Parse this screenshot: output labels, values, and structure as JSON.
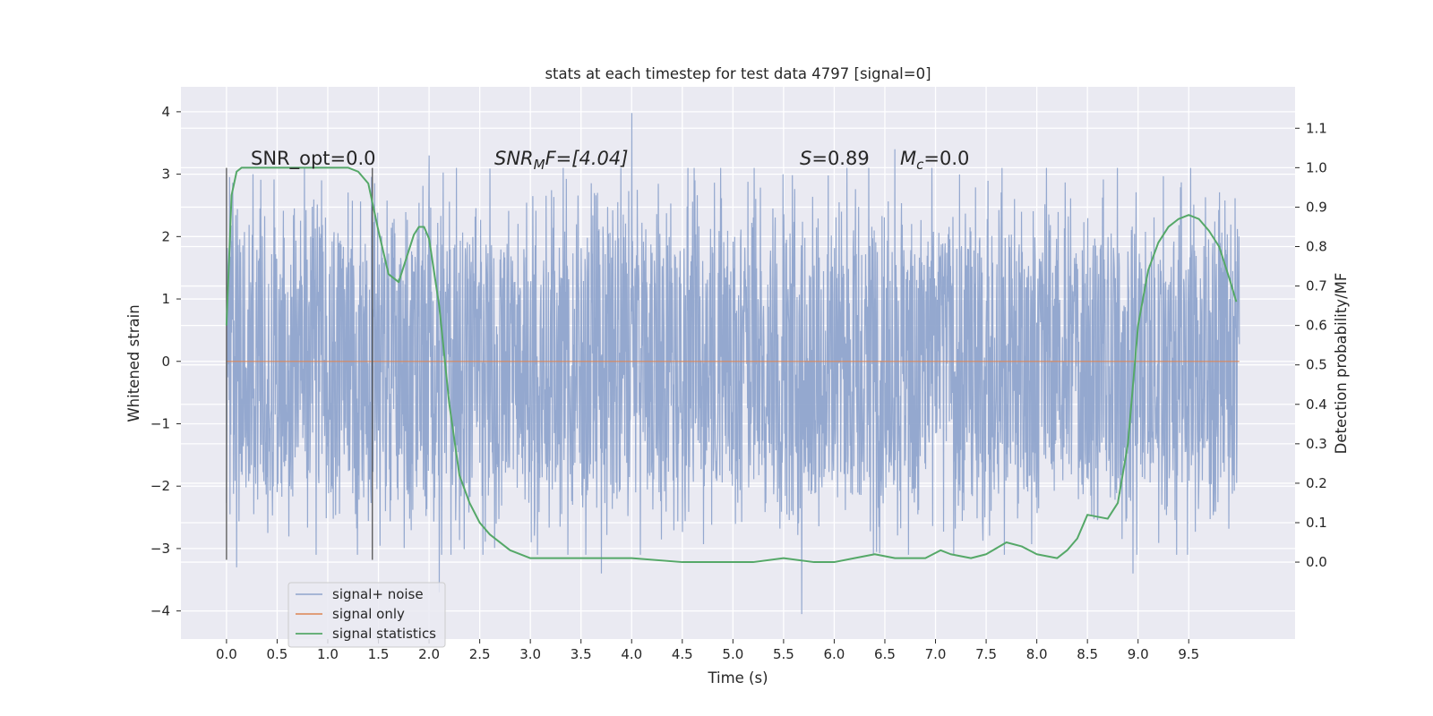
{
  "chart_data": {
    "type": "line",
    "title": "stats at each timestep for test data 4797 [signal=0]",
    "xlabel": "Time (s)",
    "ylabel_left": "Whitened strain",
    "ylabel_right": "Detection probability/MF",
    "xlim": [
      -0.45,
      10.55
    ],
    "ylim_left": [
      -4.45,
      4.4
    ],
    "ylim_right": [
      -0.195,
      1.205
    ],
    "x_ticks": [
      "0.0",
      "0.5",
      "1.0",
      "1.5",
      "2.0",
      "2.5",
      "3.0",
      "3.5",
      "4.0",
      "4.5",
      "5.0",
      "5.5",
      "6.0",
      "6.5",
      "7.0",
      "7.5",
      "8.0",
      "8.5",
      "9.0",
      "9.5"
    ],
    "y_ticks_left": [
      "−4",
      "−3",
      "−2",
      "−1",
      "0",
      "1",
      "2",
      "3",
      "4"
    ],
    "y_ticks_right": [
      "0.0",
      "0.1",
      "0.2",
      "0.3",
      "0.4",
      "0.5",
      "0.6",
      "0.7",
      "0.8",
      "0.9",
      "1.0",
      "1.1"
    ],
    "grid": true,
    "legend_position": "lower-left",
    "annotations": {
      "snr_opt": "SNR_opt=0.0",
      "snr_mf_base": "SNR",
      "snr_mf_sub": "M",
      "snr_mf_rest": "F=[4.04]",
      "s_base": "S",
      "s_rest": "=0.89",
      "mc_base": "M",
      "mc_sub": "c",
      "mc_rest": "=0.0"
    },
    "vertical_markers": [
      0.0,
      1.44
    ],
    "series": [
      {
        "name": "signal+ noise",
        "color": "#8fa4cc",
        "kind": "noise",
        "x_range": [
          0.0,
          10.0
        ],
        "y_abs_typical": 1.8,
        "y_max": 3.98,
        "y_min": -4.05,
        "notable_extremes": [
          [
            4.0,
            3.98
          ],
          [
            5.68,
            -4.05
          ],
          [
            2.1,
            -3.7
          ],
          [
            2.0,
            3.3
          ],
          [
            6.6,
            3.4
          ],
          [
            8.95,
            -3.4
          ],
          [
            3.7,
            -3.4
          ],
          [
            0.1,
            -3.3
          ]
        ]
      },
      {
        "name": "signal only",
        "color": "#dd8452",
        "x": [
          0.0,
          10.0
        ],
        "y": [
          0.0,
          0.0
        ]
      },
      {
        "name": "signal statistics",
        "color": "#55a868",
        "axis": "right",
        "x": [
          0.0,
          0.05,
          0.1,
          0.15,
          0.2,
          0.3,
          0.5,
          0.8,
          1.0,
          1.2,
          1.3,
          1.4,
          1.5,
          1.6,
          1.7,
          1.8,
          1.85,
          1.9,
          1.95,
          2.0,
          2.1,
          2.2,
          2.3,
          2.4,
          2.5,
          2.6,
          2.8,
          3.0,
          3.2,
          3.5,
          4.0,
          4.5,
          5.0,
          5.2,
          5.5,
          5.8,
          6.0,
          6.2,
          6.4,
          6.6,
          6.9,
          7.05,
          7.15,
          7.35,
          7.5,
          7.7,
          7.85,
          8.0,
          8.2,
          8.3,
          8.4,
          8.5,
          8.7,
          8.8,
          8.9,
          9.0,
          9.1,
          9.2,
          9.3,
          9.4,
          9.5,
          9.6,
          9.7,
          9.8,
          9.9,
          9.97
        ],
        "y": [
          0.6,
          0.93,
          0.99,
          1.0,
          1.0,
          1.0,
          1.0,
          1.0,
          1.0,
          1.0,
          0.99,
          0.96,
          0.84,
          0.73,
          0.71,
          0.79,
          0.83,
          0.85,
          0.85,
          0.82,
          0.65,
          0.4,
          0.22,
          0.15,
          0.1,
          0.07,
          0.03,
          0.01,
          0.01,
          0.01,
          0.01,
          0.0,
          0.0,
          0.0,
          0.01,
          0.0,
          0.0,
          0.01,
          0.02,
          0.01,
          0.01,
          0.03,
          0.02,
          0.01,
          0.02,
          0.05,
          0.04,
          0.02,
          0.01,
          0.03,
          0.06,
          0.12,
          0.11,
          0.15,
          0.3,
          0.6,
          0.74,
          0.81,
          0.85,
          0.87,
          0.88,
          0.87,
          0.84,
          0.8,
          0.72,
          0.66
        ]
      }
    ]
  }
}
